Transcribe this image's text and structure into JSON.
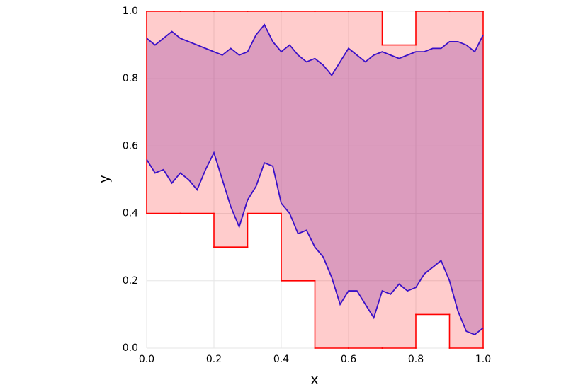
{
  "chart_data": {
    "type": "band",
    "xlabel": "x",
    "ylabel": "y",
    "xlim": [
      0,
      1
    ],
    "ylim": [
      0,
      1
    ],
    "xticks": [
      {
        "value": 0,
        "label": "0.0"
      },
      0.2,
      0.4,
      0.6,
      0.8,
      {
        "value": 1,
        "label": "1.0"
      }
    ],
    "yticks": [
      {
        "value": 0,
        "label": "0.0"
      },
      0.2,
      0.4,
      0.6,
      0.8,
      {
        "value": 1,
        "label": "1.0"
      }
    ],
    "grid": true,
    "series": [
      {
        "color": "#ff0000",
        "step": true,
        "bins": [
          0,
          0.1,
          0.2,
          0.3,
          0.4,
          0.5,
          0.6,
          0.7,
          0.8,
          0.9,
          1.0
        ],
        "lower": [
          0.4,
          0.4,
          0.3,
          0.4,
          0.2,
          0,
          0,
          0,
          0.1,
          0
        ],
        "upper": [
          1,
          1,
          1,
          1,
          1,
          1,
          1,
          0.9,
          1,
          1
        ]
      },
      {
        "color": "#3a10c8",
        "step": false,
        "x": [
          0,
          0.025,
          0.05,
          0.075,
          0.1,
          0.125,
          0.15,
          0.175,
          0.2,
          0.225,
          0.25,
          0.275,
          0.3,
          0.325,
          0.35,
          0.375,
          0.4,
          0.425,
          0.45,
          0.475,
          0.5,
          0.525,
          0.55,
          0.575,
          0.6,
          0.625,
          0.65,
          0.675,
          0.7,
          0.725,
          0.75,
          0.775,
          0.8,
          0.825,
          0.85,
          0.875,
          0.9,
          0.925,
          0.95,
          0.975,
          1.0
        ],
        "upper": [
          0.92,
          0.9,
          0.92,
          0.94,
          0.92,
          0.91,
          0.9,
          0.89,
          0.88,
          0.87,
          0.89,
          0.87,
          0.88,
          0.93,
          0.96,
          0.91,
          0.88,
          0.9,
          0.87,
          0.85,
          0.86,
          0.84,
          0.81,
          0.85,
          0.89,
          0.87,
          0.85,
          0.87,
          0.88,
          0.87,
          0.86,
          0.87,
          0.88,
          0.88,
          0.89,
          0.89,
          0.91,
          0.91,
          0.9,
          0.88,
          0.93
        ],
        "lower": [
          0.56,
          0.52,
          0.53,
          0.49,
          0.52,
          0.5,
          0.47,
          0.53,
          0.58,
          0.5,
          0.42,
          0.36,
          0.44,
          0.48,
          0.55,
          0.54,
          0.43,
          0.4,
          0.34,
          0.35,
          0.3,
          0.27,
          0.21,
          0.13,
          0.17,
          0.17,
          0.13,
          0.09,
          0.17,
          0.16,
          0.19,
          0.17,
          0.18,
          0.22,
          0.24,
          0.26,
          0.2,
          0.11,
          0.05,
          0.04,
          0.06
        ]
      }
    ]
  }
}
